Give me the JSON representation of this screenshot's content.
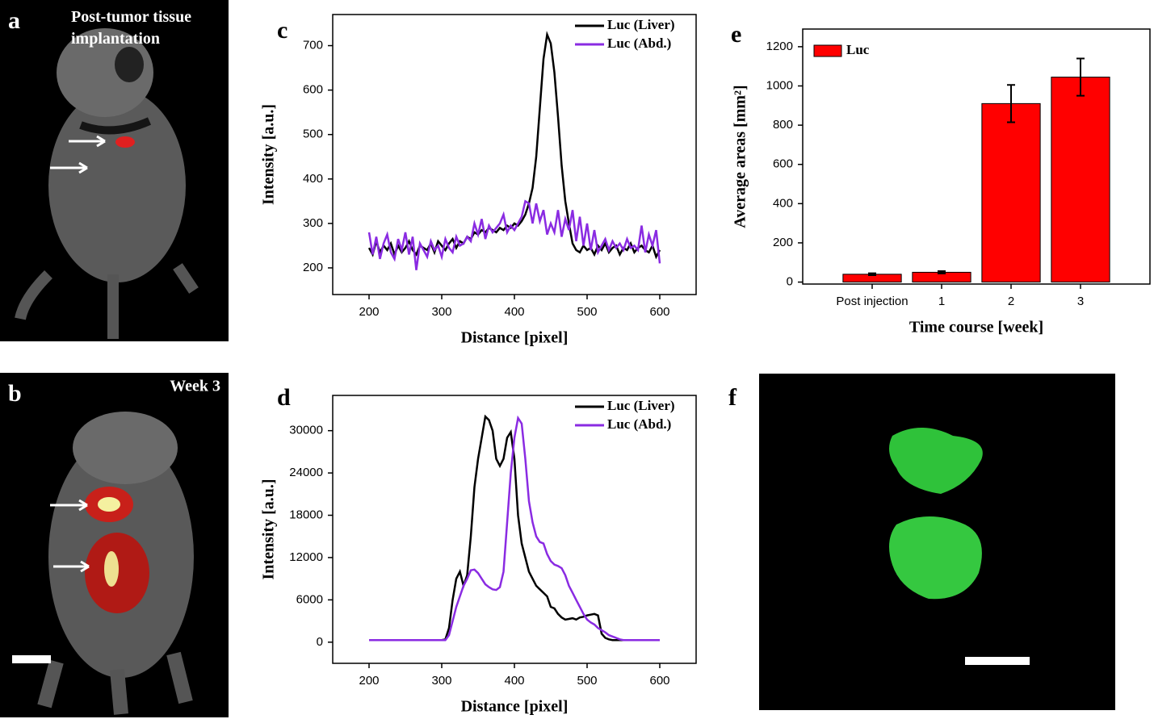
{
  "panels": [
    {
      "label": "a",
      "caption": "Post-tumor tissue implantation"
    },
    {
      "label": "b",
      "caption": "Week 3"
    },
    {
      "label": "f"
    }
  ],
  "chart_data": [
    {
      "type": "line",
      "label": "c",
      "xlabel": "Distance [pixel]",
      "ylabel": "Intensity [a.u.]",
      "x": [
        200,
        205,
        210,
        215,
        220,
        225,
        230,
        235,
        240,
        245,
        250,
        255,
        260,
        265,
        270,
        275,
        280,
        285,
        290,
        295,
        300,
        305,
        310,
        315,
        320,
        325,
        330,
        335,
        340,
        345,
        350,
        355,
        360,
        365,
        370,
        375,
        380,
        385,
        390,
        395,
        400,
        405,
        410,
        415,
        420,
        425,
        430,
        435,
        440,
        445,
        450,
        455,
        460,
        465,
        470,
        475,
        480,
        485,
        490,
        495,
        500,
        505,
        510,
        515,
        520,
        525,
        530,
        535,
        540,
        545,
        550,
        555,
        560,
        565,
        570,
        575,
        580,
        585,
        590,
        595,
        600
      ],
      "series": [
        {
          "name": "Luc (Liver)",
          "color": "#000000",
          "values": [
            245,
            230,
            260,
            235,
            250,
            240,
            255,
            230,
            250,
            235,
            245,
            260,
            240,
            230,
            250,
            245,
            240,
            255,
            235,
            260,
            250,
            240,
            255,
            265,
            245,
            260,
            255,
            270,
            265,
            280,
            275,
            285,
            280,
            290,
            285,
            280,
            290,
            285,
            295,
            290,
            300,
            295,
            305,
            320,
            345,
            380,
            450,
            560,
            670,
            725,
            705,
            640,
            540,
            430,
            350,
            300,
            255,
            240,
            235,
            250,
            240,
            245,
            230,
            250,
            240,
            255,
            235,
            245,
            250,
            230,
            245,
            240,
            255,
            235,
            245,
            250,
            240,
            235,
            250,
            225,
            240
          ]
        },
        {
          "name": "Luc (Abd.)",
          "color": "#8a2be2",
          "values": [
            280,
            230,
            270,
            220,
            255,
            275,
            235,
            220,
            265,
            240,
            280,
            230,
            270,
            195,
            255,
            240,
            225,
            260,
            240,
            250,
            225,
            265,
            245,
            235,
            270,
            250,
            255,
            270,
            260,
            300,
            275,
            310,
            265,
            295,
            280,
            290,
            300,
            320,
            280,
            295,
            285,
            300,
            315,
            350,
            345,
            300,
            345,
            305,
            330,
            275,
            300,
            280,
            330,
            270,
            310,
            285,
            330,
            260,
            315,
            250,
            300,
            240,
            285,
            235,
            250,
            265,
            240,
            260,
            245,
            255,
            240,
            265,
            245,
            250,
            240,
            295,
            235,
            275,
            250,
            285,
            210
          ]
        }
      ],
      "xlim": [
        150,
        650
      ],
      "ylim": [
        140,
        770
      ],
      "xticks": [
        200,
        300,
        400,
        500,
        600
      ],
      "yticks": [
        200,
        300,
        400,
        500,
        600,
        700
      ],
      "legend": "upper right"
    },
    {
      "type": "line",
      "label": "d",
      "xlabel": "Distance [pixel]",
      "ylabel": "Intensity [a.u.]",
      "x": [
        200,
        205,
        210,
        215,
        220,
        225,
        230,
        235,
        240,
        245,
        250,
        255,
        260,
        265,
        270,
        275,
        280,
        285,
        290,
        295,
        300,
        305,
        310,
        315,
        320,
        325,
        330,
        335,
        340,
        345,
        350,
        355,
        360,
        365,
        370,
        375,
        380,
        385,
        390,
        395,
        400,
        405,
        410,
        415,
        420,
        425,
        430,
        435,
        440,
        445,
        450,
        455,
        460,
        465,
        470,
        475,
        480,
        485,
        490,
        495,
        500,
        505,
        510,
        515,
        520,
        525,
        530,
        535,
        540,
        545,
        550,
        555,
        560,
        565,
        570,
        575,
        580,
        585,
        590,
        595,
        600
      ],
      "series": [
        {
          "name": "Luc (Liver)",
          "color": "#000000",
          "values": [
            300,
            300,
            300,
            300,
            300,
            300,
            300,
            300,
            300,
            300,
            300,
            300,
            300,
            300,
            300,
            300,
            300,
            300,
            300,
            300,
            300,
            400,
            2000,
            6000,
            9000,
            10000,
            8000,
            9500,
            15000,
            22000,
            26000,
            29000,
            32000,
            31500,
            30000,
            26000,
            25000,
            26000,
            29000,
            29800,
            26000,
            18000,
            14000,
            12000,
            10000,
            9000,
            8000,
            7500,
            7000,
            6500,
            5000,
            4800,
            4000,
            3500,
            3200,
            3300,
            3400,
            3200,
            3500,
            3600,
            3800,
            3900,
            4000,
            3800,
            1200,
            600,
            400,
            300,
            300,
            300,
            300,
            300,
            300,
            300,
            300,
            300,
            300,
            300,
            300,
            300,
            300
          ]
        },
        {
          "name": "Luc (Abd.)",
          "color": "#8a2be2",
          "values": [
            300,
            300,
            300,
            300,
            300,
            300,
            300,
            300,
            300,
            300,
            300,
            300,
            300,
            300,
            300,
            300,
            300,
            300,
            300,
            300,
            300,
            300,
            1000,
            3000,
            5000,
            6500,
            8000,
            9000,
            10200,
            10300,
            9800,
            9000,
            8200,
            7800,
            7500,
            7400,
            7800,
            10000,
            17000,
            24000,
            29000,
            31800,
            31000,
            26000,
            20000,
            17000,
            15000,
            14200,
            14000,
            12500,
            11500,
            11000,
            10800,
            10500,
            9500,
            8000,
            7000,
            6000,
            5000,
            4000,
            3200,
            2800,
            2500,
            2000,
            1700,
            1400,
            1000,
            800,
            600,
            400,
            300,
            300,
            300,
            300,
            300,
            300,
            300,
            300,
            300,
            300,
            300
          ]
        }
      ],
      "xlim": [
        150,
        650
      ],
      "ylim": [
        -3000,
        35000
      ],
      "xticks": [
        200,
        300,
        400,
        500,
        600
      ],
      "yticks": [
        0,
        6000,
        12000,
        18000,
        24000,
        30000
      ],
      "legend": "upper right"
    },
    {
      "type": "bar",
      "label": "e",
      "xlabel": "Time course [week]",
      "ylabel": "Average areas [mm²]",
      "categories": [
        "Post injection",
        "1",
        "2",
        "3"
      ],
      "series": [
        {
          "name": "Luc",
          "color": "#ff0000",
          "values": [
            40,
            50,
            910,
            1045
          ],
          "errors": [
            5,
            6,
            95,
            95
          ]
        }
      ],
      "ylim": [
        -10,
        1290
      ],
      "yticks": [
        0,
        200,
        400,
        600,
        800,
        1000,
        1200
      ],
      "legend": "upper left"
    }
  ]
}
